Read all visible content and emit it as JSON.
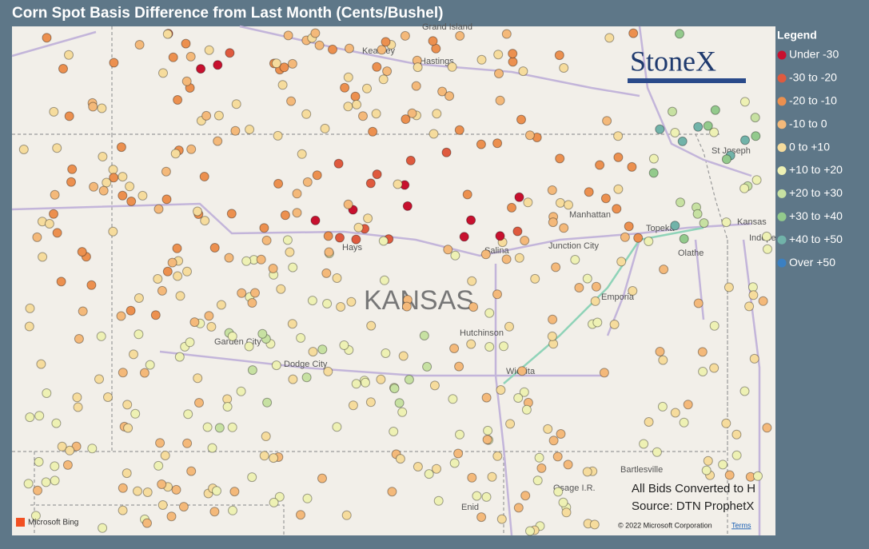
{
  "header": {
    "title": "Corn Spot Basis Difference from Last Month (Cents/Bushel)"
  },
  "legend": {
    "title": "Legend",
    "items": [
      {
        "label": "Under -30",
        "color": "#c8102e"
      },
      {
        "label": "-30 to -20",
        "color": "#df5a3e"
      },
      {
        "label": "-20 to -10",
        "color": "#ec904f"
      },
      {
        "label": "-10 to 0",
        "color": "#f4b97a"
      },
      {
        "label": "0 to +10",
        "color": "#f6dc9d"
      },
      {
        "label": "+10 to +20",
        "color": "#eef1b4"
      },
      {
        "label": "+20 to +30",
        "color": "#c7e1a2"
      },
      {
        "label": "+30 to +40",
        "color": "#93ca8c"
      },
      {
        "label": "+40 to +50",
        "color": "#71b3a9"
      },
      {
        "label": "Over +50",
        "color": "#3b80c2"
      }
    ]
  },
  "map": {
    "state": "KANSAS",
    "labels": [
      "Grand Island",
      "Kearney",
      "Hastings",
      "St Joseph",
      "Manhattan",
      "Topeka",
      "Kansas",
      "Indepe",
      "Hays",
      "Salina",
      "Junction City",
      "Olathe",
      "Emporia",
      "Garden City",
      "Dodge City",
      "Hutchinson",
      "Wichita",
      "Bartlesville",
      "Osage I.R.",
      "Enid"
    ]
  },
  "logo": "StoneX",
  "notes": [
    "All Bids Converted to H",
    "Source: DTN ProphetX"
  ],
  "footer": {
    "provider": "Microsoft Bing",
    "copyright": "© 2022 Microsoft Corporation",
    "terms": "Terms"
  }
}
